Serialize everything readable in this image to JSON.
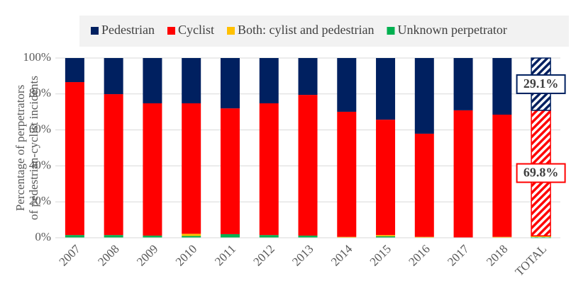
{
  "chart_data": {
    "type": "stacked_bar",
    "ylabel": [
      "Percentage of perpetrators",
      "of pedestrian-cyclist incidents"
    ],
    "categories": [
      "2007",
      "2008",
      "2009",
      "2010",
      "2011",
      "2012",
      "2013",
      "2014",
      "2015",
      "2016",
      "2017",
      "2018",
      "TOTAL"
    ],
    "series": [
      {
        "name": "Unknown perpetrator",
        "color": "#00b050",
        "values": [
          1.5,
          1.5,
          1.2,
          1.0,
          2.0,
          1.5,
          1.2,
          0,
          0.8,
          0,
          0,
          0,
          0.7
        ]
      },
      {
        "name": "Both: cylist and pedestrian",
        "color": "#ffc000",
        "values": [
          0,
          0,
          0,
          1.2,
          0,
          0,
          0,
          0.5,
          0.7,
          0.5,
          0,
          0.5,
          0.4
        ]
      },
      {
        "name": "Cyclist",
        "color": "#ff0000",
        "values": [
          85.1,
          78.4,
          73.6,
          72.6,
          70.0,
          73.3,
          78.3,
          69.6,
          64.2,
          57.4,
          70.9,
          68.0,
          69.8
        ],
        "value_labels": [
          null,
          null,
          null,
          null,
          null,
          null,
          null,
          null,
          null,
          null,
          null,
          null,
          "69.8%"
        ]
      },
      {
        "name": "Pedestrian",
        "color": "#002060",
        "values": [
          13.4,
          20.1,
          25.2,
          25.2,
          28.0,
          25.2,
          20.5,
          29.9,
          34.3,
          42.1,
          29.1,
          31.5,
          29.1
        ],
        "value_labels": [
          null,
          null,
          null,
          null,
          null,
          null,
          null,
          null,
          null,
          null,
          null,
          null,
          "29.1%"
        ]
      }
    ],
    "legend_order": [
      3,
      2,
      1,
      0
    ],
    "hatched_last": true,
    "ylim": [
      0,
      100
    ],
    "yticks": [
      {
        "value": 0,
        "label": "0%"
      },
      {
        "value": 20,
        "label": "20%"
      },
      {
        "value": 40,
        "label": "40%"
      },
      {
        "value": 60,
        "label": "60%"
      },
      {
        "value": 80,
        "label": "80%"
      },
      {
        "value": 100,
        "label": "100%"
      }
    ],
    "grid": true
  }
}
